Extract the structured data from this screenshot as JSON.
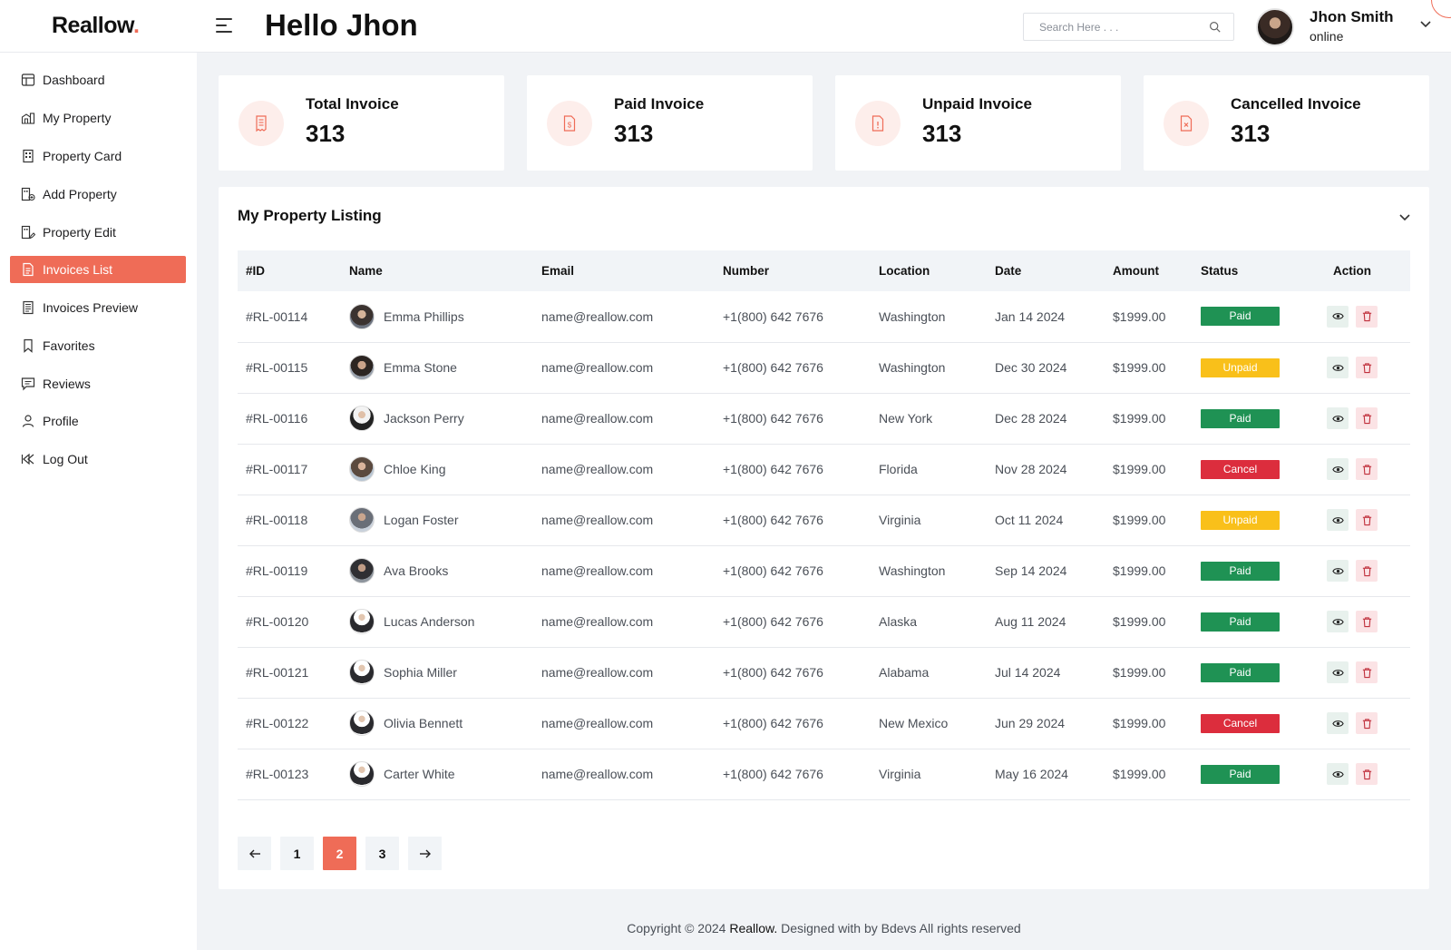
{
  "app": {
    "logo": "Reallow",
    "logo_dot": ".",
    "greeting": "Hello Jhon"
  },
  "search": {
    "placeholder": "Search Here . . ."
  },
  "user": {
    "name": "Jhon Smith",
    "status": "online"
  },
  "sidebar": {
    "items": [
      {
        "label": "Dashboard",
        "icon": "dashboard-icon"
      },
      {
        "label": "My Property",
        "icon": "property-icon"
      },
      {
        "label": "Property Card",
        "icon": "building-icon"
      },
      {
        "label": "Add Property",
        "icon": "add-building-icon"
      },
      {
        "label": "Property Edit",
        "icon": "edit-building-icon"
      },
      {
        "label": "Invoices List",
        "icon": "invoice-list-icon",
        "active": true
      },
      {
        "label": "Invoices Preview",
        "icon": "invoice-preview-icon"
      },
      {
        "label": "Favorites",
        "icon": "bookmark-icon"
      },
      {
        "label": "Reviews",
        "icon": "review-icon"
      },
      {
        "label": "Profile",
        "icon": "user-icon"
      },
      {
        "label": "Log Out",
        "icon": "logout-icon"
      }
    ]
  },
  "stats": [
    {
      "label": "Total Invoice",
      "value": "313",
      "icon": "receipt-icon"
    },
    {
      "label": "Paid Invoice",
      "value": "313",
      "icon": "dollar-document-icon"
    },
    {
      "label": "Unpaid Invoice",
      "value": "313",
      "icon": "warning-document-icon"
    },
    {
      "label": "Cancelled Invoice",
      "value": "313",
      "icon": "cancel-document-icon"
    }
  ],
  "listing": {
    "title": "My Property Listing",
    "columns": [
      "#ID",
      "Name",
      "Email",
      "Number",
      "Location",
      "Date",
      "Amount",
      "Status",
      "Action"
    ],
    "rows": [
      {
        "id": "#RL-00114",
        "name": "Emma Phillips",
        "email": "name@reallow.com",
        "number": "+1(800) 642 7676",
        "location": "Washington",
        "date": "Jan 14 2024",
        "amount": "$1999.00",
        "status": "Paid"
      },
      {
        "id": "#RL-00115",
        "name": "Emma Stone",
        "email": "name@reallow.com",
        "number": "+1(800) 642 7676",
        "location": "Washington",
        "date": "Dec 30 2024",
        "amount": "$1999.00",
        "status": "Unpaid"
      },
      {
        "id": "#RL-00116",
        "name": "Jackson Perry",
        "email": "name@reallow.com",
        "number": "+1(800) 642 7676",
        "location": "New York",
        "date": "Dec 28 2024",
        "amount": "$1999.00",
        "status": "Paid"
      },
      {
        "id": "#RL-00117",
        "name": "Chloe King",
        "email": "name@reallow.com",
        "number": "+1(800) 642 7676",
        "location": "Florida",
        "date": "Nov 28 2024",
        "amount": "$1999.00",
        "status": "Cancel"
      },
      {
        "id": "#RL-00118",
        "name": "Logan Foster",
        "email": "name@reallow.com",
        "number": "+1(800) 642 7676",
        "location": "Virginia",
        "date": "Oct 11 2024",
        "amount": "$1999.00",
        "status": "Unpaid"
      },
      {
        "id": "#RL-00119",
        "name": "Ava Brooks",
        "email": "name@reallow.com",
        "number": "+1(800) 642 7676",
        "location": "Washington",
        "date": "Sep 14 2024",
        "amount": "$1999.00",
        "status": "Paid"
      },
      {
        "id": "#RL-00120",
        "name": "Lucas Anderson",
        "email": "name@reallow.com",
        "number": "+1(800) 642 7676",
        "location": "Alaska",
        "date": "Aug 11 2024",
        "amount": "$1999.00",
        "status": "Paid"
      },
      {
        "id": "#RL-00121",
        "name": "Sophia Miller",
        "email": "name@reallow.com",
        "number": "+1(800) 642 7676",
        "location": "Alabama",
        "date": "Jul 14 2024",
        "amount": "$1999.00",
        "status": "Paid"
      },
      {
        "id": "#RL-00122",
        "name": "Olivia Bennett",
        "email": "name@reallow.com",
        "number": "+1(800) 642 7676",
        "location": "New Mexico",
        "date": "Jun 29 2024",
        "amount": "$1999.00",
        "status": "Cancel"
      },
      {
        "id": "#RL-00123",
        "name": "Carter White",
        "email": "name@reallow.com",
        "number": "+1(800) 642 7676",
        "location": "Virginia",
        "date": "May 16 2024",
        "amount": "$1999.00",
        "status": "Paid"
      }
    ]
  },
  "pagination": {
    "pages": [
      "1",
      "2",
      "3"
    ],
    "current": "2"
  },
  "footer": {
    "prefix": "Copyright © 2024 ",
    "brand": "Reallow.",
    "suffix": " Designed with by Bdevs All rights reserved"
  },
  "colors": {
    "accent": "#ef6c57",
    "paid": "#1f9254",
    "unpaid": "#f9c01a",
    "cancel": "#dc2d3d"
  }
}
